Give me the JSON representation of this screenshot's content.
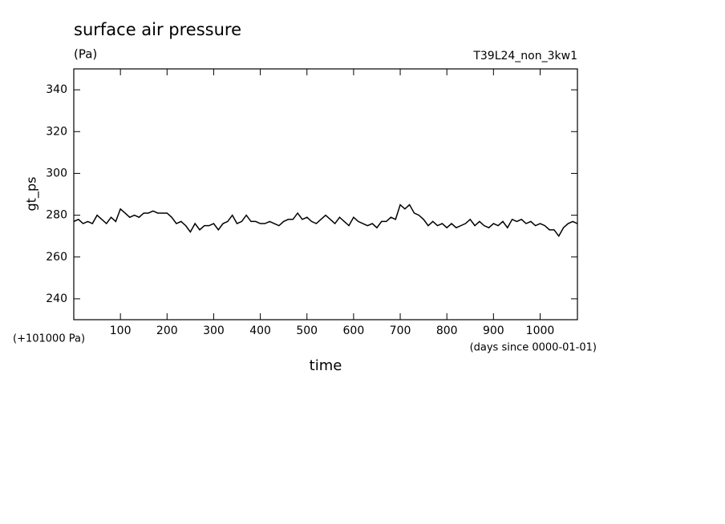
{
  "chart_data": {
    "type": "line",
    "title": "surface air pressure",
    "units": "(Pa)",
    "run_name": "T39L24_non_3kw1",
    "ylabel": "gt_ps",
    "xlabel": "time",
    "y_offset_note": "(+101000 Pa)",
    "x_units_note": "(days since 0000-01-01)",
    "xlim": [
      0,
      1080
    ],
    "ylim": [
      230,
      350
    ],
    "xticks": [
      100,
      200,
      300,
      400,
      500,
      600,
      700,
      800,
      900,
      1000
    ],
    "yticks": [
      240,
      260,
      280,
      300,
      320,
      340
    ],
    "x": [
      0,
      10,
      20,
      30,
      40,
      50,
      60,
      70,
      80,
      90,
      100,
      110,
      120,
      130,
      140,
      150,
      160,
      170,
      180,
      190,
      200,
      210,
      220,
      230,
      240,
      250,
      260,
      270,
      280,
      290,
      300,
      310,
      320,
      330,
      340,
      350,
      360,
      370,
      380,
      390,
      400,
      410,
      420,
      430,
      440,
      450,
      460,
      470,
      480,
      490,
      500,
      510,
      520,
      530,
      540,
      550,
      560,
      570,
      580,
      590,
      600,
      610,
      620,
      630,
      640,
      650,
      660,
      670,
      680,
      690,
      700,
      710,
      720,
      730,
      740,
      750,
      760,
      770,
      780,
      790,
      800,
      810,
      820,
      830,
      840,
      850,
      860,
      870,
      880,
      890,
      900,
      910,
      920,
      930,
      940,
      950,
      960,
      970,
      980,
      990,
      1000,
      1010,
      1020,
      1030,
      1040,
      1050,
      1060,
      1070,
      1080
    ],
    "series": [
      {
        "color": "#000000",
        "values": [
          277,
          278,
          276,
          277,
          276,
          280,
          278,
          276,
          279,
          277,
          283,
          281,
          279,
          280,
          279,
          281,
          281,
          282,
          281,
          281,
          281,
          279,
          276,
          277,
          275,
          272,
          276,
          273,
          275,
          275,
          276,
          273,
          276,
          277,
          280,
          276,
          277,
          280,
          277,
          277,
          276,
          276,
          277,
          276,
          275,
          277,
          278,
          278,
          281,
          278,
          279,
          277,
          276,
          278,
          280,
          278,
          276,
          279,
          277,
          275,
          279,
          277,
          276,
          275,
          276,
          274,
          277,
          277,
          279,
          278,
          285,
          283,
          285,
          281,
          280,
          278,
          275,
          277,
          275,
          276,
          274,
          276,
          274,
          275,
          276,
          278,
          275,
          277,
          275,
          274,
          276,
          275,
          277,
          274,
          278,
          277,
          278,
          276,
          277,
          275,
          276,
          275,
          273,
          273,
          270,
          274,
          276,
          277,
          276
        ]
      }
    ]
  }
}
